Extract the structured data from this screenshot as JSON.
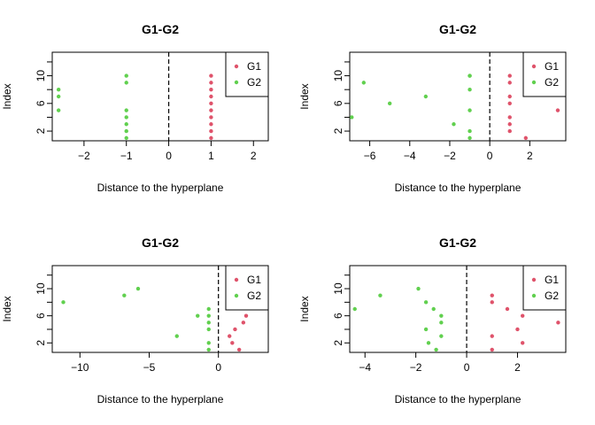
{
  "chart_data": [
    {
      "type": "scatter",
      "title": "G1-G2",
      "xlabel": "Distance to the hyperplane",
      "ylabel": "Index",
      "xlim": [
        -2.75,
        2.35
      ],
      "ylim": [
        0.6,
        13.4
      ],
      "xticks": [
        -2,
        -1,
        0,
        1,
        2
      ],
      "yticks": [
        2,
        6,
        10
      ],
      "hyperplane_x": 0,
      "legend": {
        "position": "top-right",
        "entries": [
          "G1",
          "G2"
        ]
      },
      "series": [
        {
          "name": "G1",
          "color": "#df536b",
          "x": [
            1,
            1,
            1,
            1,
            1,
            1,
            1,
            1,
            1,
            1
          ],
          "y": [
            1,
            2,
            3,
            4,
            5,
            6,
            7,
            8,
            9,
            10
          ]
        },
        {
          "name": "G2",
          "color": "#61d04f",
          "x": [
            -1,
            -1,
            -1,
            -1,
            -1,
            -1,
            -1,
            -2.6,
            -2.6,
            -2.6
          ],
          "y": [
            1,
            2,
            3,
            4,
            5,
            9,
            10,
            5,
            7,
            8
          ]
        }
      ]
    },
    {
      "type": "scatter",
      "title": "G1-G2",
      "xlabel": "Distance to the hyperplane",
      "ylabel": "Index",
      "xlim": [
        -7.0,
        3.8
      ],
      "ylim": [
        0.6,
        13.4
      ],
      "xticks": [
        -6,
        -4,
        -2,
        0,
        2
      ],
      "yticks": [
        2,
        6,
        10
      ],
      "hyperplane_x": 0,
      "legend": {
        "position": "top-right",
        "entries": [
          "G1",
          "G2"
        ]
      },
      "series": [
        {
          "name": "G1",
          "color": "#df536b",
          "x": [
            1,
            1,
            1,
            1,
            1,
            1,
            1,
            1.8,
            3.4
          ],
          "y": [
            2,
            3,
            4,
            6,
            7,
            9,
            10,
            1,
            5
          ]
        },
        {
          "name": "G2",
          "color": "#61d04f",
          "x": [
            -1,
            -1,
            -1,
            -1,
            -1,
            -1,
            -6.3,
            -5.0,
            -3.2,
            -1.8,
            -6.9
          ],
          "y": [
            1,
            2,
            5,
            8,
            10,
            10,
            9,
            6,
            7,
            3,
            4
          ]
        }
      ]
    },
    {
      "type": "scatter",
      "title": "G1-G2",
      "xlabel": "Distance to the hyperplane",
      "ylabel": "Index",
      "xlim": [
        -12.0,
        3.6
      ],
      "ylim": [
        0.6,
        13.4
      ],
      "xticks": [
        -10,
        -5,
        0
      ],
      "yticks": [
        2,
        6,
        10
      ],
      "hyperplane_x": 0,
      "legend": {
        "position": "top-right",
        "entries": [
          "G1",
          "G2"
        ]
      },
      "series": [
        {
          "name": "G1",
          "color": "#df536b",
          "x": [
            1.5,
            1.0,
            0.8,
            1.2,
            1.8,
            2.0
          ],
          "y": [
            1,
            2,
            3,
            4,
            5,
            6
          ]
        },
        {
          "name": "G2",
          "color": "#61d04f",
          "x": [
            -0.7,
            -0.7,
            -0.7,
            -0.7,
            -0.7,
            -0.7,
            -1.5,
            -3.0,
            -6.8,
            -5.8,
            -11.2
          ],
          "y": [
            1,
            2,
            4,
            5,
            6,
            7,
            6,
            3,
            9,
            10,
            8
          ]
        }
      ]
    },
    {
      "type": "scatter",
      "title": "G1-G2",
      "xlabel": "Distance to the hyperplane",
      "ylabel": "Index",
      "xlim": [
        -4.6,
        3.9
      ],
      "ylim": [
        0.6,
        13.4
      ],
      "xticks": [
        -4,
        -2,
        0,
        2
      ],
      "yticks": [
        2,
        6,
        10
      ],
      "hyperplane_x": 0,
      "legend": {
        "position": "top-right",
        "entries": [
          "G1",
          "G2"
        ]
      },
      "series": [
        {
          "name": "G1",
          "color": "#df536b",
          "x": [
            1,
            1,
            1,
            1,
            2.2,
            2.2,
            2.0,
            1.6,
            3.6
          ],
          "y": [
            1,
            3,
            8,
            9,
            2,
            6,
            4,
            7,
            5
          ]
        },
        {
          "name": "G2",
          "color": "#61d04f",
          "x": [
            -1.9,
            -1.6,
            -1.5,
            -1.0,
            -1.0,
            -1.0,
            -1.2,
            -1.6,
            -1.3,
            -3.4,
            -4.4
          ],
          "y": [
            10,
            8,
            2,
            3,
            5,
            6,
            1,
            4,
            7,
            9,
            7
          ]
        }
      ]
    }
  ]
}
